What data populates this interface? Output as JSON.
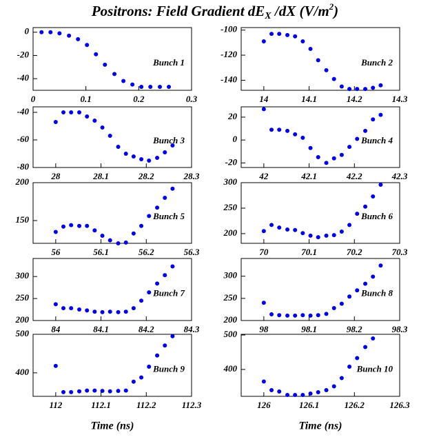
{
  "title": [
    "Positrons: Field Gradient dE",
    "X",
    " /dX (V/m",
    "2",
    ")"
  ],
  "chart_data": [
    {
      "type": "scatter",
      "annotation": "Bunch 1",
      "color": "#0000ee",
      "xlim": [
        0,
        0.3
      ],
      "xticks": [
        0,
        0.1,
        0.2,
        0.3
      ],
      "ylim": [
        -50,
        4
      ],
      "yticks": [
        0,
        -20,
        -40
      ],
      "x": [
        0.016,
        0.033,
        0.05,
        0.068,
        0.085,
        0.102,
        0.119,
        0.136,
        0.154,
        0.171,
        0.188,
        0.205,
        0.222,
        0.24,
        0.257
      ],
      "values": [
        0,
        0,
        -1,
        -3,
        -6,
        -11,
        -19,
        -28,
        -36,
        -42,
        -45,
        -47,
        -47,
        -47,
        -47
      ]
    },
    {
      "type": "scatter",
      "annotation": "Bunch 2",
      "color": "#0000ee",
      "xlim": [
        13.95,
        14.3
      ],
      "xticks": [
        14,
        14.1,
        14.2,
        14.3
      ],
      "ylim": [
        -148,
        -98
      ],
      "yticks": [
        -100,
        -120,
        -140
      ],
      "x": [
        14.0,
        14.017,
        14.034,
        14.052,
        14.069,
        14.086,
        14.103,
        14.12,
        14.138,
        14.155,
        14.172,
        14.189,
        14.206,
        14.224,
        14.241,
        14.258
      ],
      "values": [
        -109,
        -103,
        -103,
        -104,
        -105,
        -109,
        -115,
        -124,
        -132,
        -139,
        -145,
        -147,
        -147,
        -147,
        -146,
        -144
      ]
    },
    {
      "type": "scatter",
      "annotation": "Bunch 3",
      "color": "#0000ee",
      "xlim": [
        27.95,
        28.3
      ],
      "xticks": [
        28,
        28.1,
        28.2,
        28.3
      ],
      "ylim": [
        -80,
        -36
      ],
      "yticks": [
        -40,
        -60,
        -80
      ],
      "x": [
        28.0,
        28.017,
        28.034,
        28.052,
        28.069,
        28.086,
        28.103,
        28.12,
        28.138,
        28.155,
        28.172,
        28.189,
        28.206,
        28.224,
        28.241,
        28.258
      ],
      "values": [
        -47,
        -40,
        -40,
        -40,
        -43,
        -46,
        -51,
        -57,
        -65,
        -70,
        -72,
        -74,
        -75,
        -73,
        -69,
        -64
      ]
    },
    {
      "type": "scatter",
      "annotation": "Bunch 4",
      "color": "#0000ee",
      "xlim": [
        41.95,
        42.3
      ],
      "xticks": [
        42,
        42.1,
        42.2,
        42.3
      ],
      "ylim": [
        -24,
        29
      ],
      "yticks": [
        20,
        0,
        -20
      ],
      "x": [
        42.0,
        42.017,
        42.034,
        42.052,
        42.069,
        42.086,
        42.103,
        42.12,
        42.138,
        42.155,
        42.172,
        42.189,
        42.206,
        42.224,
        42.241,
        42.258
      ],
      "values": [
        27,
        9,
        9,
        8,
        5,
        2,
        -7,
        -15,
        -20,
        -16,
        -13,
        -6,
        1,
        8,
        18,
        22
      ]
    },
    {
      "type": "scatter",
      "annotation": "Bunch 5",
      "color": "#0000ee",
      "xlim": [
        55.95,
        56.3
      ],
      "xticks": [
        56,
        56.1,
        56.2,
        56.3
      ],
      "ylim": [
        120,
        200
      ],
      "yticks": [
        200,
        150
      ],
      "x": [
        56.0,
        56.017,
        56.034,
        56.052,
        56.069,
        56.086,
        56.103,
        56.12,
        56.138,
        56.155,
        56.172,
        56.189,
        56.206,
        56.224,
        56.241,
        56.258
      ],
      "values": [
        135,
        142,
        144,
        143,
        143,
        137,
        130,
        124,
        120,
        121,
        133,
        143,
        156,
        167,
        180,
        192
      ]
    },
    {
      "type": "scatter",
      "annotation": "Bunch 6",
      "color": "#0000ee",
      "xlim": [
        69.95,
        70.3
      ],
      "xticks": [
        70,
        70.1,
        70.2,
        70.3
      ],
      "ylim": [
        181,
        300
      ],
      "yticks": [
        300,
        250,
        200
      ],
      "x": [
        70.0,
        70.017,
        70.034,
        70.052,
        70.069,
        70.086,
        70.103,
        70.12,
        70.138,
        70.155,
        70.172,
        70.189,
        70.206,
        70.224,
        70.241,
        70.258
      ],
      "values": [
        205,
        217,
        212,
        208,
        207,
        201,
        196,
        193,
        196,
        197,
        204,
        217,
        239,
        253,
        273,
        296
      ]
    },
    {
      "type": "scatter",
      "annotation": "Bunch 7",
      "color": "#0000ee",
      "xlim": [
        83.95,
        84.3
      ],
      "xticks": [
        84,
        84.1,
        84.2,
        84.3
      ],
      "ylim": [
        200,
        341
      ],
      "yticks": [
        300,
        250,
        200
      ],
      "x": [
        84.0,
        84.017,
        84.034,
        84.052,
        84.069,
        84.086,
        84.103,
        84.12,
        84.138,
        84.155,
        84.172,
        84.189,
        84.206,
        84.224,
        84.241,
        84.258
      ],
      "values": [
        237,
        228,
        228,
        225,
        223,
        220,
        219,
        220,
        219,
        220,
        228,
        245,
        264,
        284,
        303,
        323
      ]
    },
    {
      "type": "scatter",
      "annotation": "Bunch 8",
      "color": "#0000ee",
      "xlim": [
        97.95,
        98.3
      ],
      "xticks": [
        98,
        98.1,
        98.2,
        98.3
      ],
      "ylim": [
        200,
        340
      ],
      "yticks": [
        300,
        250,
        200
      ],
      "x": [
        98.0,
        98.017,
        98.034,
        98.052,
        98.069,
        98.086,
        98.103,
        98.12,
        98.138,
        98.155,
        98.172,
        98.189,
        98.206,
        98.224,
        98.241,
        98.258
      ],
      "values": [
        240,
        214,
        212,
        211,
        211,
        212,
        211,
        212,
        215,
        228,
        238,
        254,
        268,
        283,
        299,
        324
      ]
    },
    {
      "type": "scatter",
      "annotation": "Bunch 9",
      "xlabel": "Time (ns)",
      "color": "#0000ee",
      "xlim": [
        111.95,
        112.3
      ],
      "xticks": [
        112,
        112.1,
        112.2,
        112.3
      ],
      "ylim": [
        339,
        500
      ],
      "yticks": [
        500,
        400
      ],
      "x": [
        112.0,
        112.017,
        112.034,
        112.052,
        112.069,
        112.086,
        112.103,
        112.12,
        112.138,
        112.155,
        112.172,
        112.189,
        112.206,
        112.224,
        112.241,
        112.258
      ],
      "values": [
        418,
        350,
        350,
        352,
        354,
        354,
        353,
        352,
        353,
        354,
        377,
        388,
        416,
        445,
        471,
        495
      ]
    },
    {
      "type": "scatter",
      "annotation": "Bunch 10",
      "xlabel": "Time (ns)",
      "color": "#0000ee",
      "xlim": [
        125.95,
        126.3
      ],
      "xticks": [
        126,
        126.1,
        126.2,
        126.3
      ],
      "ylim": [
        322,
        502
      ],
      "yticks": [
        500,
        400
      ],
      "x": [
        126.0,
        126.017,
        126.034,
        126.052,
        126.069,
        126.086,
        126.103,
        126.12,
        126.138,
        126.155,
        126.172,
        126.189,
        126.206,
        126.224,
        126.241
      ],
      "values": [
        365,
        340,
        336,
        326,
        326,
        326,
        330,
        334,
        340,
        351,
        375,
        408,
        433,
        465,
        490
      ]
    }
  ]
}
